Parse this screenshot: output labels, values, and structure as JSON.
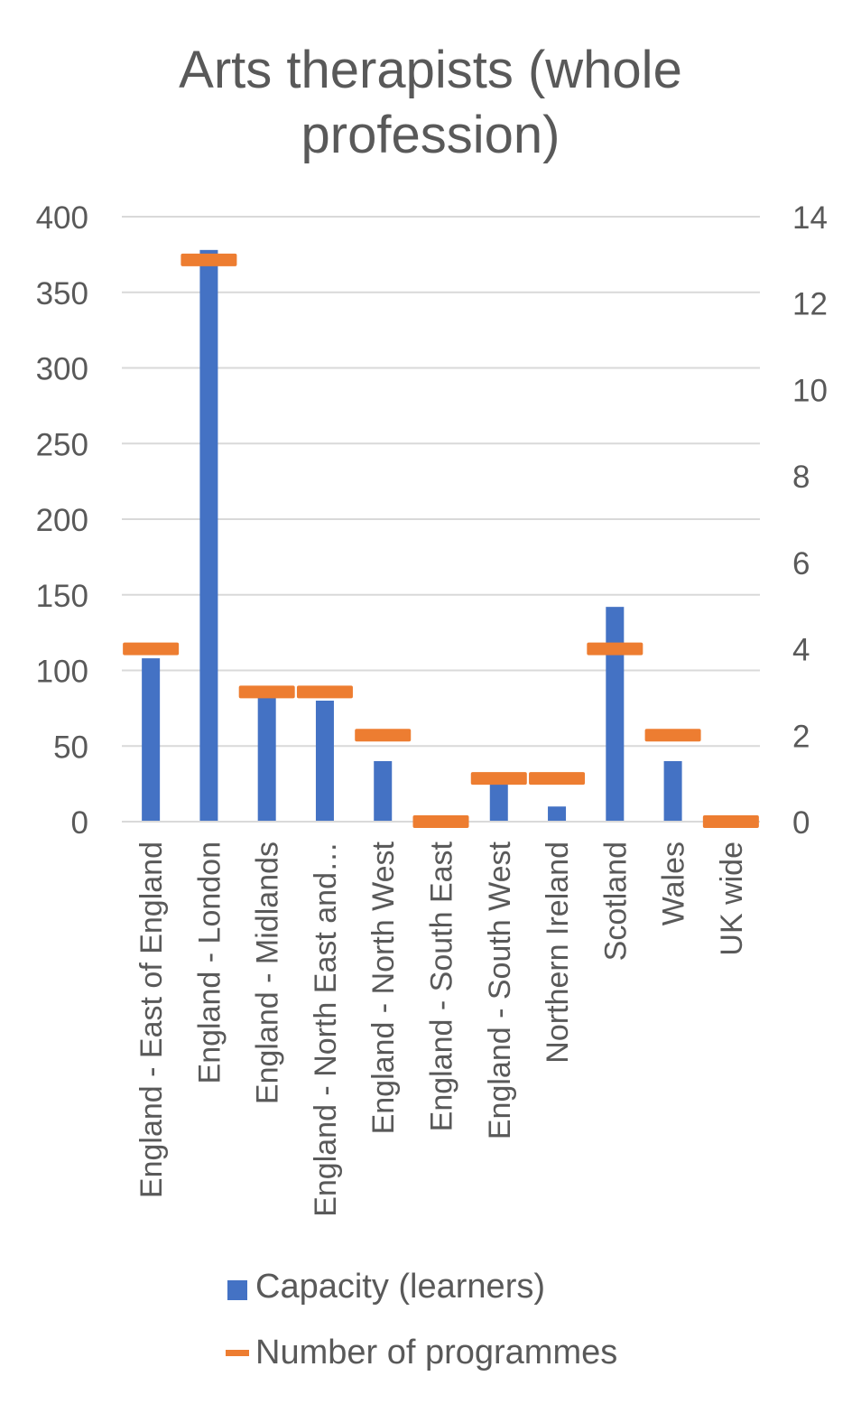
{
  "chart_data": {
    "type": "bar",
    "title_lines": [
      "Arts therapists (whole",
      "profession)"
    ],
    "categories": [
      "England - East of England",
      "England - London",
      "England - Midlands",
      "England - North East and…",
      "England - North West",
      "England - South East",
      "England - South West",
      "Northern Ireland",
      "Scotland",
      "Wales",
      "UK wide"
    ],
    "series": [
      {
        "name": "Capacity (learners)",
        "axis": "left",
        "marker": "bar",
        "color": "#4472C4",
        "values": [
          108,
          378,
          84,
          80,
          40,
          0,
          25,
          10,
          142,
          40,
          0
        ]
      },
      {
        "name": "Number of programmes",
        "axis": "right",
        "marker": "dash",
        "color": "#ED7D31",
        "values": [
          4,
          13,
          3,
          3,
          2,
          0,
          1,
          1,
          4,
          2,
          0
        ]
      }
    ],
    "y_left": {
      "min": 0,
      "max": 400,
      "ticks": [
        0,
        50,
        100,
        150,
        200,
        250,
        300,
        350,
        400
      ]
    },
    "y_right": {
      "min": 0,
      "max": 14,
      "ticks": [
        0,
        2,
        4,
        6,
        8,
        10,
        12,
        14
      ]
    },
    "grid": true,
    "legend_position": "bottom"
  }
}
